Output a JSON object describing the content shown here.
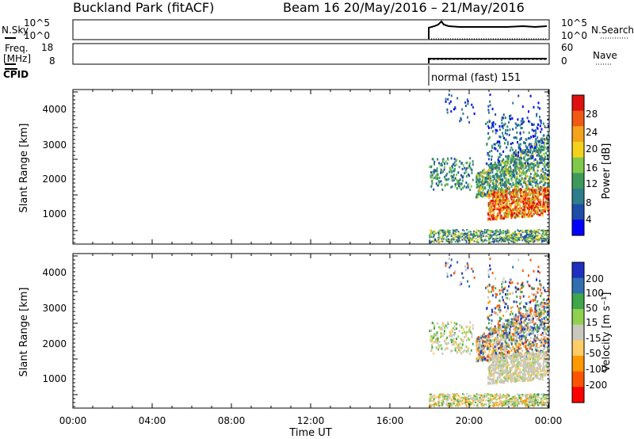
{
  "header": {
    "title": "Buckland Park (fitACF)",
    "subtitle": "Beam 16  20/May/2016 – 21/May/2016"
  },
  "params": {
    "nsky_label": "N.Sky",
    "nsky_ticks": [
      "10^5",
      "10^0"
    ],
    "nsearch_label": "N.Search",
    "nsearch_ticks": [
      "10^5",
      "10^0"
    ],
    "freq_label_line1": "Freq.",
    "freq_label_line2": "[MHz]",
    "freq_ticks": [
      "18",
      "8"
    ],
    "nave_label": "Nave",
    "nave_ticks": [
      "60",
      "0"
    ],
    "cpid_label": "CPID",
    "cpid_value": "normal (fast) 151"
  },
  "colors": {
    "axis": "#000000",
    "power_scale": [
      "#0000ff",
      "#1e4da8",
      "#2e7d8c",
      "#3d9a5a",
      "#7fc94a",
      "#f2d21b",
      "#f5a31b",
      "#f05a14",
      "#e01010"
    ],
    "velocity_scale": [
      "#ff0000",
      "#ff5500",
      "#ff9900",
      "#ffcc66",
      "#c8c8be",
      "#8fd14f",
      "#3fa64a",
      "#2f6fb0",
      "#1f2fc0"
    ]
  },
  "chart_data": [
    {
      "type": "heatmap",
      "ylabel": "Slant Range [km]",
      "yticks": [
        "1000",
        "2000",
        "3000",
        "4000"
      ],
      "colorbar_label": "Power [dB]",
      "colorbar_ticks": [
        "4",
        "8",
        "12",
        "16",
        "20",
        "24",
        "28"
      ],
      "ylim": [
        200,
        4600
      ],
      "grid": false
    },
    {
      "type": "heatmap",
      "ylabel": "Slant Range [km]",
      "yticks": [
        "1000",
        "2000",
        "3000",
        "4000"
      ],
      "colorbar_label": "Velocity [m s⁻¹]",
      "colorbar_ticks": [
        "200",
        "100",
        "50",
        "15",
        "-15",
        "-50",
        "-100",
        "-200"
      ],
      "ylim": [
        200,
        4600
      ],
      "xlabel": "Time UT",
      "xticks": [
        "00:00",
        "04:00",
        "08:00",
        "12:00",
        "16:00",
        "20:00",
        "00:00"
      ],
      "grid": false
    }
  ]
}
